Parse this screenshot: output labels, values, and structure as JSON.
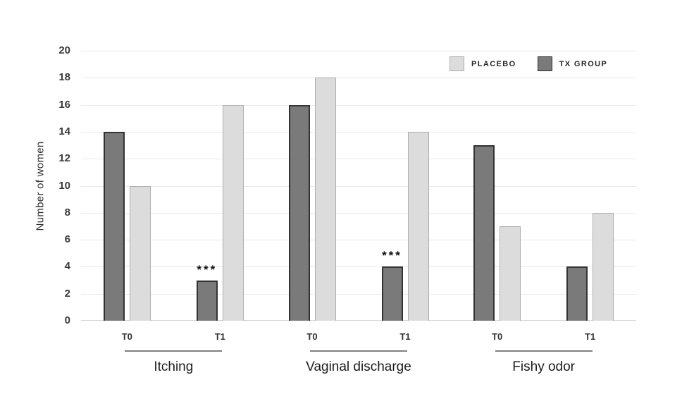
{
  "chart_data": {
    "type": "bar",
    "title": "",
    "ylabel": "Number of women",
    "xlabel": "",
    "ylim": [
      0,
      20
    ],
    "ytick_step": 2,
    "grid": "horizontal",
    "legend_position": "top-right-inside",
    "groups": [
      "Itching",
      "Vaginal discharge",
      "Fishy odor"
    ],
    "timepoints": [
      "T0",
      "T1"
    ],
    "series": [
      {
        "name": "PLACEBO",
        "fill": "#dcdcdc",
        "border": "#aeaeae",
        "values": [
          [
            10,
            16
          ],
          [
            18,
            14
          ],
          [
            7,
            8
          ]
        ]
      },
      {
        "name": "TX GROUP",
        "fill": "#7a7a7a",
        "border": "#333333",
        "values": [
          [
            14,
            3
          ],
          [
            16,
            4
          ],
          [
            13,
            4
          ]
        ]
      }
    ],
    "annotations": [
      {
        "text": "***",
        "series": "TX GROUP",
        "group": "Itching",
        "timepoint": "T1"
      },
      {
        "text": "***",
        "series": "TX GROUP",
        "group": "Vaginal discharge",
        "timepoint": "T1"
      }
    ],
    "colors": {
      "gridline": "#e9e9e9",
      "axis_line": "#d2d2d2",
      "tick_text": "#3a3a3a",
      "group_underline": "#808080"
    }
  }
}
